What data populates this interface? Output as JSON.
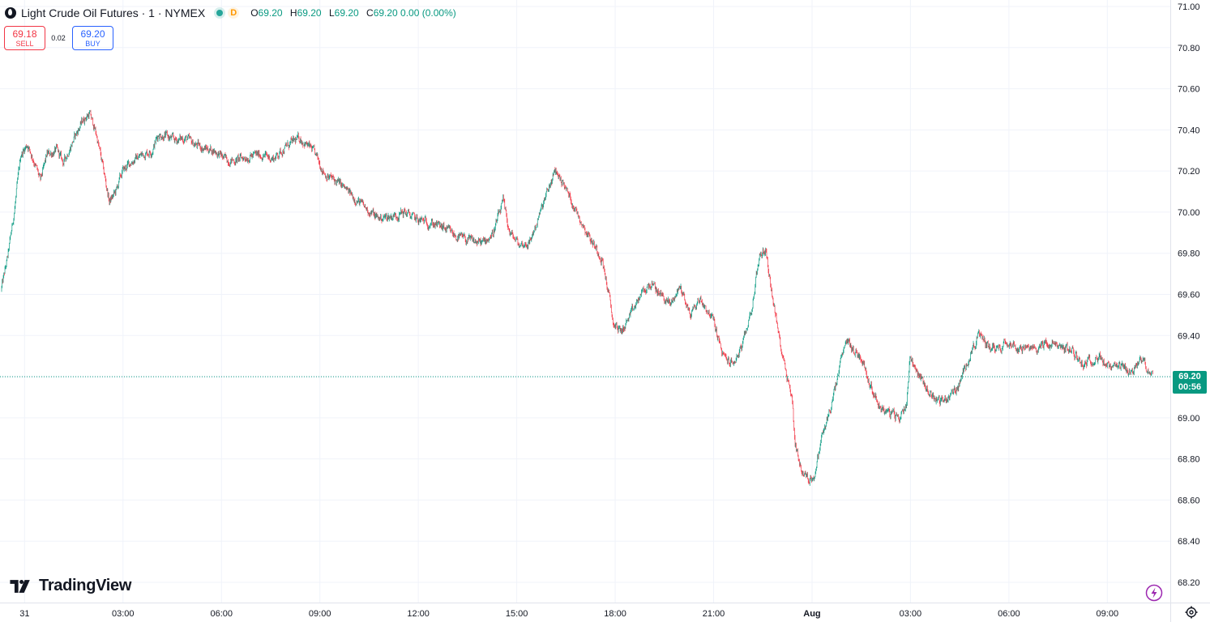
{
  "header": {
    "title": "Light Crude Oil Futures · 1 · NYMEX",
    "delay_badge": "D",
    "ohlc": {
      "o_label": "O",
      "o_value": "69.20",
      "h_label": "H",
      "h_value": "69.20",
      "l_label": "L",
      "l_value": "69.20",
      "c_label": "C",
      "c_value": "69.20 0.00 (0.00%)"
    }
  },
  "trade": {
    "sell_price": "69.18",
    "sell_label": "SELL",
    "spread": "0.02",
    "buy_price": "69.20",
    "buy_label": "BUY"
  },
  "price_tag": {
    "price": "69.20",
    "countdown": "00:56"
  },
  "brand": {
    "name": "TradingView"
  },
  "colors": {
    "up": "#089981",
    "down": "#f23645",
    "grid": "#f0f3fa",
    "axis_text": "#131722",
    "sell": "#f23645",
    "buy": "#2962ff",
    "brand_purple": "#9c27b0"
  },
  "icons": {
    "flash": "lightning-icon",
    "settings": "gear-icon",
    "symbol": "oil-drop-icon"
  },
  "chart_data": {
    "type": "candlestick",
    "title": "Light Crude Oil Futures · 1 · NYMEX",
    "interval": "1 minute",
    "current_price": 69.2,
    "ylim": [
      68.2,
      71.0
    ],
    "y_ticks": [
      "71.00",
      "70.80",
      "70.60",
      "70.40",
      "70.20",
      "70.00",
      "69.80",
      "69.60",
      "69.40",
      "69.20",
      "69.00",
      "68.80",
      "68.60",
      "68.40",
      "68.20"
    ],
    "x_ticks": [
      {
        "label": "31",
        "hour": 0
      },
      {
        "label": "03:00",
        "hour": 3
      },
      {
        "label": "06:00",
        "hour": 6
      },
      {
        "label": "09:00",
        "hour": 9
      },
      {
        "label": "12:00",
        "hour": 12
      },
      {
        "label": "15:00",
        "hour": 15
      },
      {
        "label": "18:00",
        "hour": 18
      },
      {
        "label": "21:00",
        "hour": 21
      },
      {
        "label": "Aug",
        "hour": 24
      },
      {
        "label": "03:00",
        "hour": 27
      },
      {
        "label": "06:00",
        "hour": 30
      },
      {
        "label": "09:00",
        "hour": 33
      }
    ],
    "x_range_hours": [
      -0.7,
      34.4
    ],
    "price_path": [
      [
        -0.7,
        69.62
      ],
      [
        -0.5,
        69.78
      ],
      [
        -0.3,
        70.0
      ],
      [
        -0.1,
        70.28
      ],
      [
        0.1,
        70.33
      ],
      [
        0.3,
        70.25
      ],
      [
        0.5,
        70.15
      ],
      [
        0.7,
        70.28
      ],
      [
        1.0,
        70.3
      ],
      [
        1.2,
        70.24
      ],
      [
        1.5,
        70.35
      ],
      [
        1.8,
        70.45
      ],
      [
        2.0,
        70.48
      ],
      [
        2.2,
        70.38
      ],
      [
        2.4,
        70.22
      ],
      [
        2.6,
        70.05
      ],
      [
        2.8,
        70.1
      ],
      [
        3.0,
        70.2
      ],
      [
        3.3,
        70.25
      ],
      [
        3.6,
        70.28
      ],
      [
        3.9,
        70.3
      ],
      [
        4.1,
        70.38
      ],
      [
        4.3,
        70.37
      ],
      [
        4.6,
        70.35
      ],
      [
        4.9,
        70.36
      ],
      [
        5.2,
        70.33
      ],
      [
        5.5,
        70.31
      ],
      [
        5.8,
        70.3
      ],
      [
        6.1,
        70.26
      ],
      [
        6.4,
        70.25
      ],
      [
        6.8,
        70.27
      ],
      [
        7.2,
        70.28
      ],
      [
        7.6,
        70.26
      ],
      [
        8.0,
        70.32
      ],
      [
        8.4,
        70.36
      ],
      [
        8.8,
        70.3
      ],
      [
        9.2,
        70.18
      ],
      [
        9.6,
        70.14
      ],
      [
        10.0,
        70.08
      ],
      [
        10.4,
        70.02
      ],
      [
        10.8,
        69.97
      ],
      [
        11.2,
        69.98
      ],
      [
        11.6,
        70.0
      ],
      [
        12.0,
        69.96
      ],
      [
        12.4,
        69.95
      ],
      [
        12.8,
        69.92
      ],
      [
        13.2,
        69.88
      ],
      [
        13.6,
        69.86
      ],
      [
        14.0,
        69.85
      ],
      [
        14.3,
        69.9
      ],
      [
        14.6,
        70.05
      ],
      [
        14.8,
        69.9
      ],
      [
        15.1,
        69.84
      ],
      [
        15.4,
        69.85
      ],
      [
        15.7,
        69.98
      ],
      [
        16.0,
        70.12
      ],
      [
        16.2,
        70.2
      ],
      [
        16.4,
        70.15
      ],
      [
        16.7,
        70.05
      ],
      [
        17.0,
        69.95
      ],
      [
        17.3,
        69.86
      ],
      [
        17.6,
        69.78
      ],
      [
        17.8,
        69.62
      ],
      [
        17.95,
        69.46
      ],
      [
        18.2,
        69.42
      ],
      [
        18.5,
        69.5
      ],
      [
        18.8,
        69.6
      ],
      [
        19.1,
        69.65
      ],
      [
        19.4,
        69.6
      ],
      [
        19.7,
        69.55
      ],
      [
        20.0,
        69.64
      ],
      [
        20.3,
        69.5
      ],
      [
        20.6,
        69.58
      ],
      [
        21.0,
        69.48
      ],
      [
        21.3,
        69.3
      ],
      [
        21.6,
        69.26
      ],
      [
        21.9,
        69.35
      ],
      [
        22.2,
        69.55
      ],
      [
        22.4,
        69.78
      ],
      [
        22.6,
        69.82
      ],
      [
        22.8,
        69.6
      ],
      [
        23.0,
        69.4
      ],
      [
        23.2,
        69.25
      ],
      [
        23.4,
        69.1
      ],
      [
        23.5,
        68.88
      ],
      [
        23.7,
        68.74
      ],
      [
        23.9,
        68.7
      ],
      [
        24.1,
        68.72
      ],
      [
        24.3,
        68.9
      ],
      [
        24.5,
        69.0
      ],
      [
        24.7,
        69.12
      ],
      [
        24.9,
        69.28
      ],
      [
        25.1,
        69.38
      ],
      [
        25.3,
        69.32
      ],
      [
        25.5,
        69.3
      ],
      [
        25.8,
        69.16
      ],
      [
        26.1,
        69.05
      ],
      [
        26.4,
        69.02
      ],
      [
        26.7,
        69.0
      ],
      [
        26.9,
        69.08
      ],
      [
        27.0,
        69.3
      ],
      [
        27.3,
        69.2
      ],
      [
        27.6,
        69.12
      ],
      [
        27.9,
        69.08
      ],
      [
        28.2,
        69.1
      ],
      [
        28.5,
        69.16
      ],
      [
        28.8,
        69.3
      ],
      [
        29.1,
        69.4
      ],
      [
        29.4,
        69.35
      ],
      [
        29.7,
        69.34
      ],
      [
        30.0,
        69.38
      ],
      [
        30.3,
        69.34
      ],
      [
        30.7,
        69.33
      ],
      [
        31.1,
        69.36
      ],
      [
        31.5,
        69.35
      ],
      [
        31.9,
        69.33
      ],
      [
        32.3,
        69.26
      ],
      [
        32.7,
        69.3
      ],
      [
        33.1,
        69.24
      ],
      [
        33.5,
        69.24
      ],
      [
        33.8,
        69.22
      ],
      [
        34.1,
        69.3
      ],
      [
        34.2,
        69.25
      ],
      [
        34.4,
        69.2
      ]
    ]
  }
}
